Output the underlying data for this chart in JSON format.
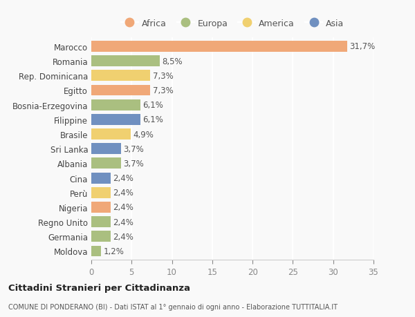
{
  "countries": [
    "Marocco",
    "Romania",
    "Rep. Dominicana",
    "Egitto",
    "Bosnia-Erzegovina",
    "Filippine",
    "Brasile",
    "Sri Lanka",
    "Albania",
    "Cina",
    "Perù",
    "Nigeria",
    "Regno Unito",
    "Germania",
    "Moldova"
  ],
  "values": [
    31.7,
    8.5,
    7.3,
    7.3,
    6.1,
    6.1,
    4.9,
    3.7,
    3.7,
    2.4,
    2.4,
    2.4,
    2.4,
    2.4,
    1.2
  ],
  "labels": [
    "31,7%",
    "8,5%",
    "7,3%",
    "7,3%",
    "6,1%",
    "6,1%",
    "4,9%",
    "3,7%",
    "3,7%",
    "2,4%",
    "2,4%",
    "2,4%",
    "2,4%",
    "2,4%",
    "1,2%"
  ],
  "continents": [
    "Africa",
    "Europa",
    "America",
    "Africa",
    "Europa",
    "Asia",
    "America",
    "Asia",
    "Europa",
    "Asia",
    "America",
    "Africa",
    "Europa",
    "Europa",
    "Europa"
  ],
  "continent_colors": {
    "Africa": "#F0A878",
    "Europa": "#AABF80",
    "America": "#F0D070",
    "Asia": "#7090C0"
  },
  "legend_order": [
    "Africa",
    "Europa",
    "America",
    "Asia"
  ],
  "xlim": [
    0,
    35
  ],
  "xticks": [
    0,
    5,
    10,
    15,
    20,
    25,
    30,
    35
  ],
  "title": "Cittadini Stranieri per Cittadinanza",
  "subtitle": "COMUNE DI PONDERANO (BI) - Dati ISTAT al 1° gennaio di ogni anno - Elaborazione TUTTITALIA.IT",
  "background_color": "#f9f9f9",
  "grid_color": "#ffffff",
  "bar_height": 0.75,
  "label_fontsize": 8.5,
  "tick_label_fontsize": 8.5
}
